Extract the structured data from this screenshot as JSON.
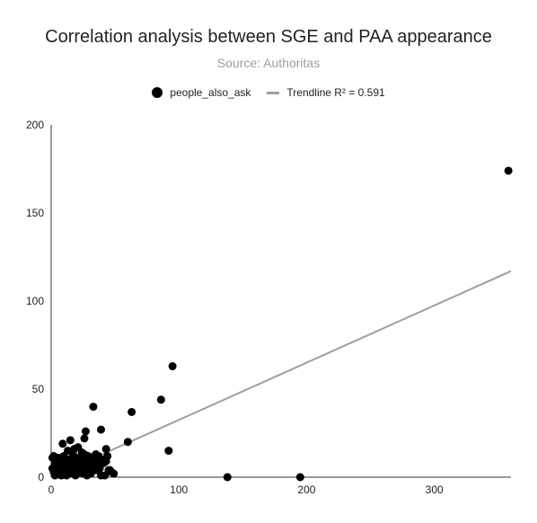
{
  "chart_data": {
    "type": "scatter",
    "title": "Correlation analysis between SGE and PAA appearance",
    "subtitle": "Source: Authoritas",
    "xlabel": "",
    "ylabel": "",
    "xlim": [
      0,
      360
    ],
    "ylim": [
      0,
      200
    ],
    "x_ticks": [
      "0",
      "100",
      "200",
      "300"
    ],
    "x_tick_values": [
      0,
      100,
      200,
      300
    ],
    "y_ticks": [
      "0",
      "50",
      "100",
      "150",
      "200"
    ],
    "y_tick_values": [
      0,
      50,
      100,
      150,
      200
    ],
    "grid": false,
    "legend_position": "top",
    "series": [
      {
        "name": "people_also_ask",
        "color": "#000000",
        "points": [
          [
            1,
            11
          ],
          [
            2,
            12
          ],
          [
            3,
            8
          ],
          [
            4,
            5
          ],
          [
            5,
            3
          ],
          [
            6,
            11
          ],
          [
            7,
            6
          ],
          [
            8,
            1
          ],
          [
            9,
            19
          ],
          [
            10,
            12
          ],
          [
            11,
            9
          ],
          [
            12,
            4
          ],
          [
            13,
            15
          ],
          [
            14,
            2
          ],
          [
            15,
            21
          ],
          [
            16,
            8
          ],
          [
            17,
            13
          ],
          [
            18,
            6
          ],
          [
            19,
            1
          ],
          [
            20,
            11
          ],
          [
            21,
            17
          ],
          [
            22,
            10
          ],
          [
            23,
            5
          ],
          [
            24,
            14
          ],
          [
            25,
            2
          ],
          [
            26,
            22
          ],
          [
            27,
            26
          ],
          [
            28,
            9
          ],
          [
            29,
            12
          ],
          [
            30,
            3
          ],
          [
            31,
            8
          ],
          [
            32,
            11
          ],
          [
            33,
            40
          ],
          [
            34,
            6
          ],
          [
            35,
            13
          ],
          [
            36,
            9
          ],
          [
            37,
            12
          ],
          [
            38,
            5
          ],
          [
            39,
            27
          ],
          [
            40,
            10
          ],
          [
            41,
            8
          ],
          [
            42,
            1
          ],
          [
            43,
            16
          ],
          [
            44,
            12
          ],
          [
            45,
            4
          ],
          [
            46,
            4
          ],
          [
            47,
            3
          ],
          [
            49,
            2
          ],
          [
            60,
            20
          ],
          [
            63,
            37
          ],
          [
            86,
            44
          ],
          [
            92,
            15
          ],
          [
            95,
            63
          ],
          [
            138,
            0
          ],
          [
            195,
            0
          ],
          [
            358,
            174
          ],
          [
            3,
            1
          ],
          [
            5,
            2
          ],
          [
            7,
            4
          ],
          [
            9,
            3
          ],
          [
            12,
            1
          ],
          [
            14,
            6
          ],
          [
            16,
            3
          ],
          [
            18,
            9
          ],
          [
            20,
            2
          ],
          [
            22,
            5
          ],
          [
            24,
            3
          ],
          [
            26,
            7
          ],
          [
            28,
            1
          ],
          [
            30,
            10
          ],
          [
            2,
            3
          ],
          [
            4,
            9
          ],
          [
            6,
            2
          ],
          [
            8,
            7
          ],
          [
            10,
            4
          ],
          [
            12,
            8
          ],
          [
            15,
            10
          ],
          [
            17,
            2
          ],
          [
            19,
            7
          ],
          [
            21,
            3
          ],
          [
            23,
            8
          ],
          [
            25,
            9
          ],
          [
            27,
            4
          ],
          [
            29,
            7
          ],
          [
            31,
            2
          ],
          [
            33,
            5
          ],
          [
            1,
            5
          ],
          [
            3,
            4
          ],
          [
            11,
            2
          ],
          [
            13,
            10
          ],
          [
            35,
            4
          ],
          [
            37,
            7
          ],
          [
            39,
            1
          ],
          [
            43,
            9
          ],
          [
            26,
            13
          ],
          [
            18,
            16
          ]
        ]
      },
      {
        "name": "Trendline R² = 0.591",
        "color": "#9e9e9e",
        "type": "line",
        "points": [
          [
            0,
            0
          ],
          [
            360,
            117
          ]
        ]
      }
    ]
  }
}
